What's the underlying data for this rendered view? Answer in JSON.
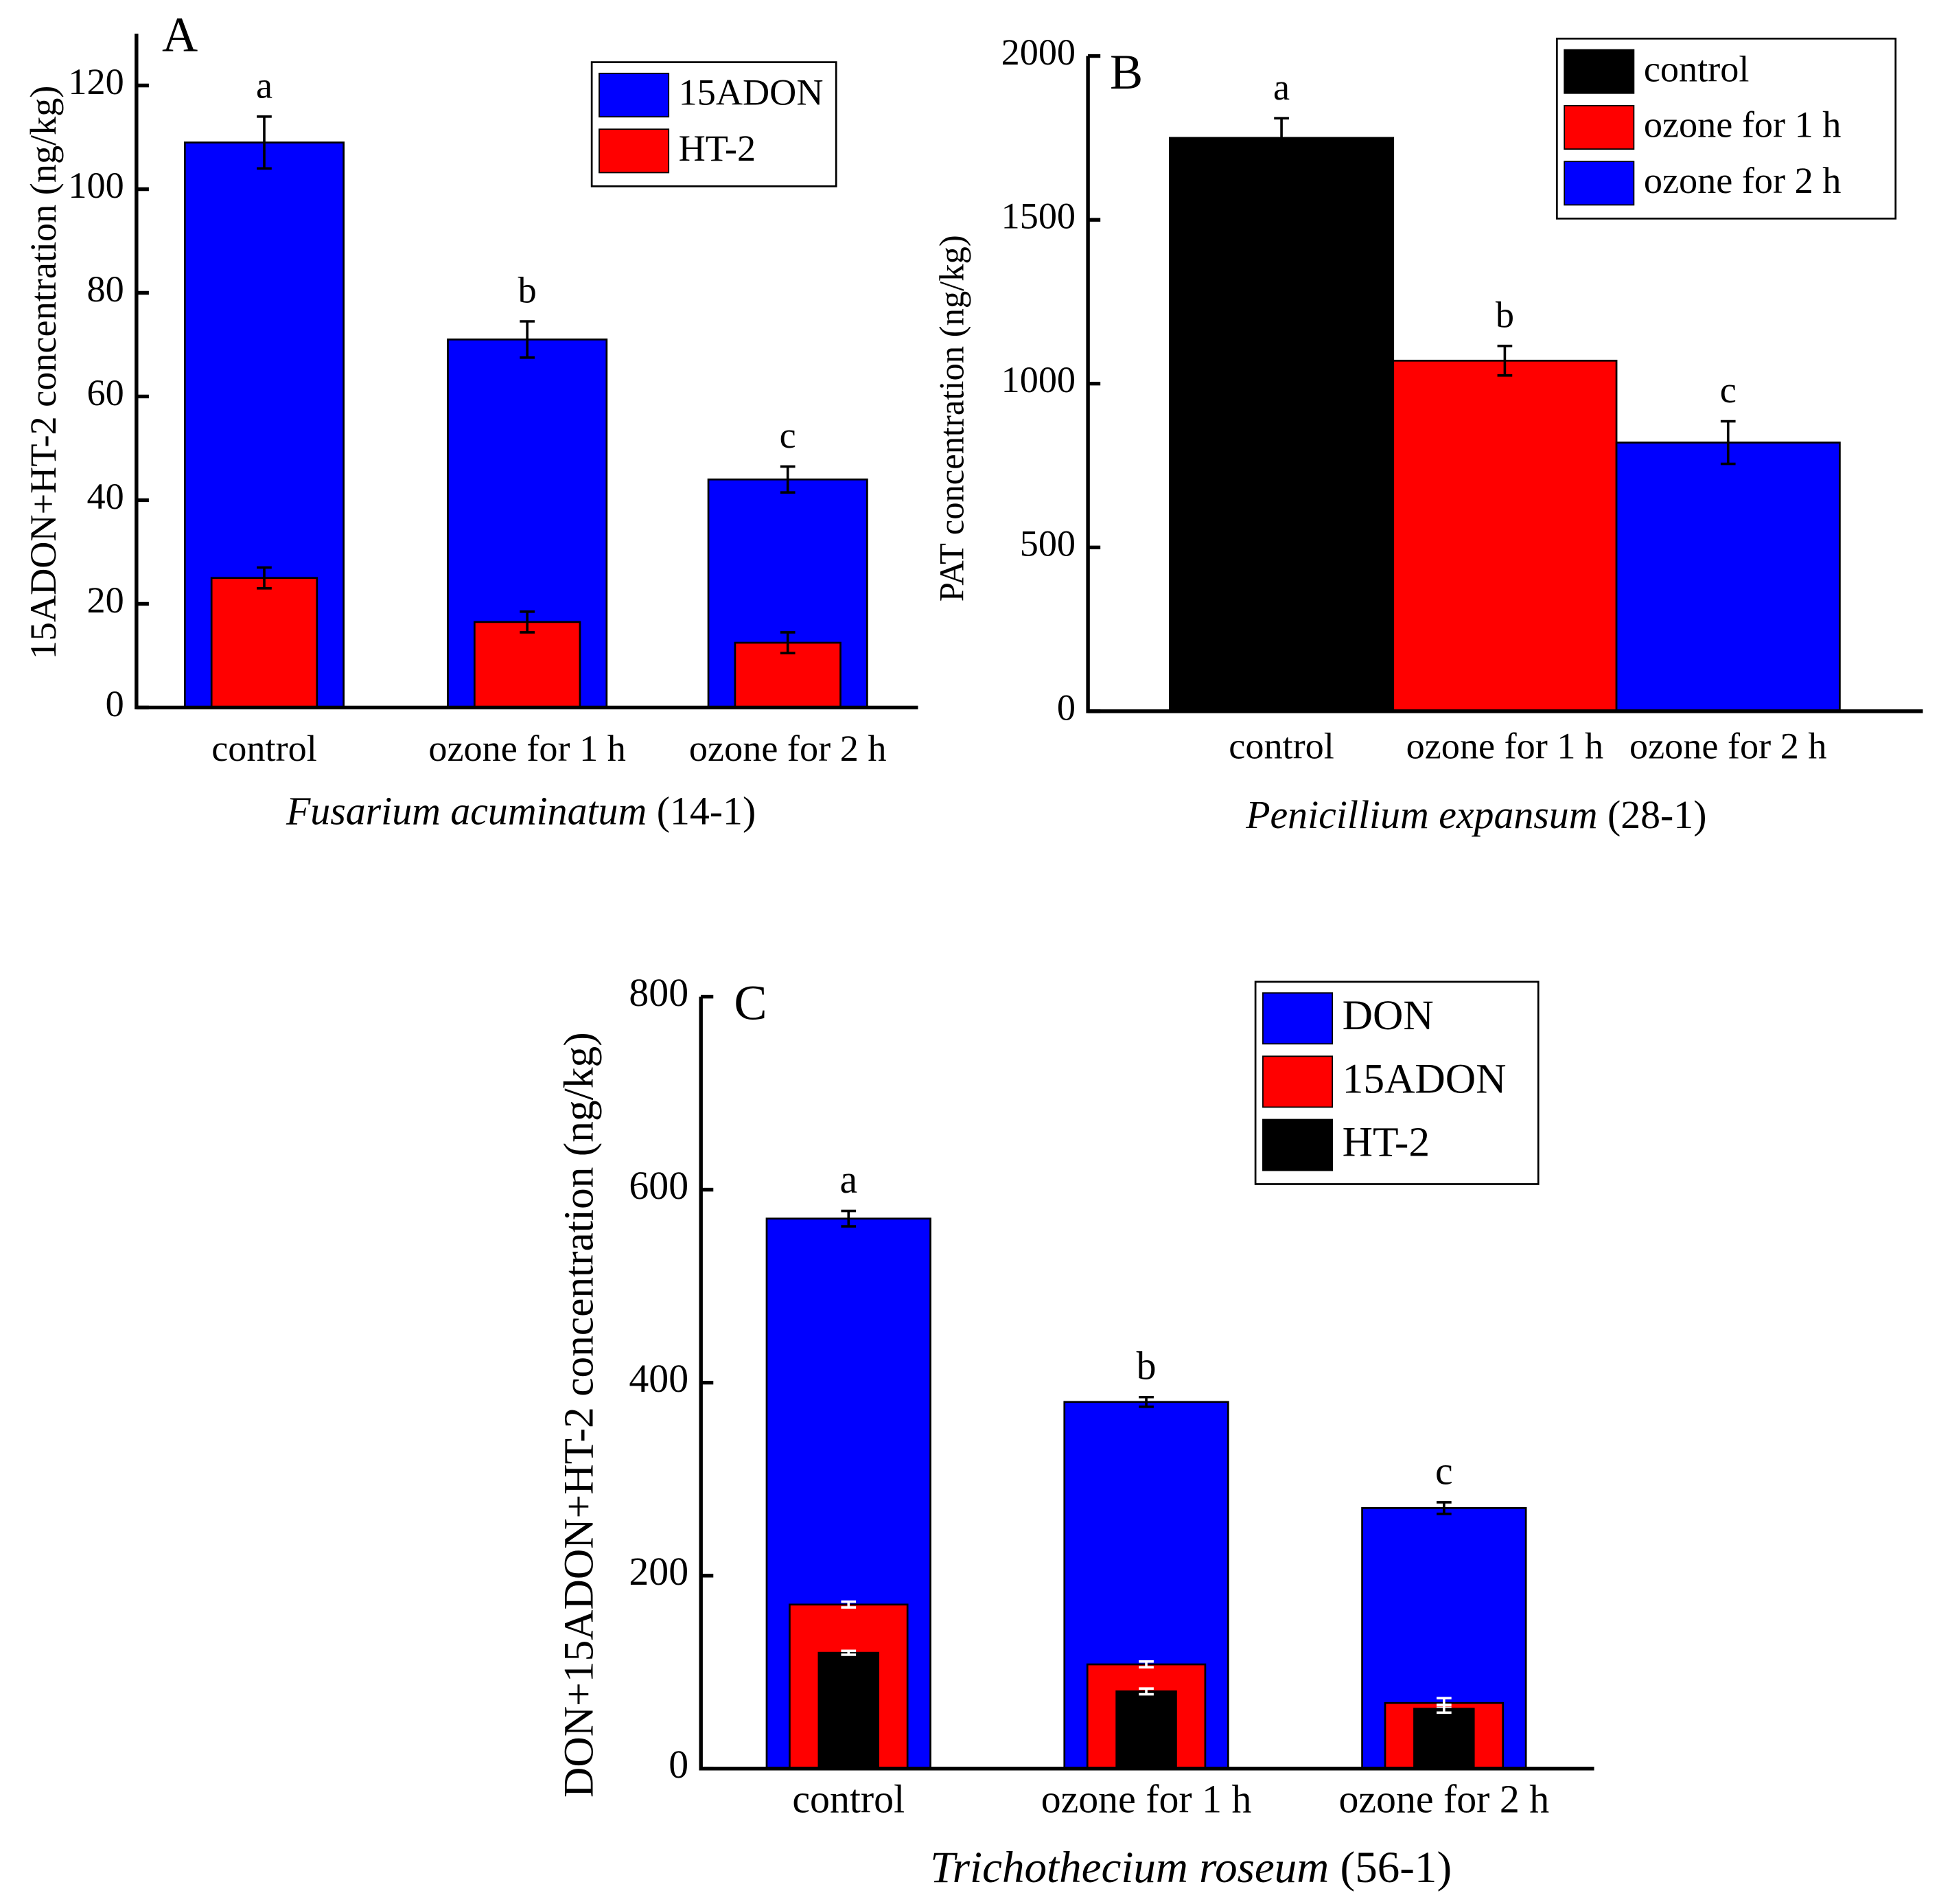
{
  "chart_data": [
    {
      "type": "bar",
      "panel": "A",
      "ylabel": "15ADON+HT-2  concentration (ng/kg)",
      "xlabel": [
        "Fusarium acuminatum",
        "(14-1)"
      ],
      "categories": [
        "control",
        "ozone for 1 h",
        "ozone for 2 h"
      ],
      "series": [
        {
          "name": "15ADON",
          "color": "#0000ff",
          "values": [
            109,
            71,
            44
          ],
          "errors": [
            5,
            3.5,
            2.5
          ],
          "error_color": "#000000"
        },
        {
          "name": "HT-2",
          "color": "#ff0000",
          "values": [
            25,
            16.5,
            12.5
          ],
          "errors": [
            2,
            2,
            2
          ],
          "error_color": "#000000"
        }
      ],
      "annotations": [
        "a",
        "b",
        "c"
      ],
      "ylim": [
        0,
        130
      ],
      "yticks": [
        0,
        20,
        40,
        60,
        80,
        100,
        120
      ],
      "legend": "upper right"
    },
    {
      "type": "bar",
      "panel": "B",
      "ylabel": "PAT concentration (ng/kg)",
      "xlabel": [
        "Penicillium expansum",
        "(28-1)"
      ],
      "categories": [
        "control",
        "ozone for 1 h",
        "ozone for 2 h"
      ],
      "series": [
        {
          "colors": [
            "#000000",
            "#ff0000",
            "#0000ff"
          ],
          "values": [
            1750,
            1070,
            820
          ],
          "errors": [
            60,
            45,
            65
          ],
          "error_color": "#000000"
        }
      ],
      "annotations": [
        "a",
        "b",
        "c"
      ],
      "ylim": [
        0,
        2000
      ],
      "yticks": [
        0,
        500,
        1000,
        1500,
        2000
      ],
      "legend": "upper right"
    },
    {
      "type": "bar",
      "panel": "C",
      "ylabel": "DON+15ADON+HT-2 concentration (ng/kg)",
      "xlabel": [
        "Trichothecium roseum",
        "(56-1)"
      ],
      "categories": [
        "control",
        "ozone for 1 h",
        "ozone for 2 h"
      ],
      "series": [
        {
          "name": "DON",
          "color": "#0000ff",
          "values": [
            570,
            380,
            270
          ],
          "errors": [
            8,
            5,
            6
          ],
          "error_color": "#000000"
        },
        {
          "name": "15ADON",
          "color": "#ff0000",
          "values": [
            170,
            108,
            68
          ],
          "errors": [
            3,
            3,
            5
          ],
          "error_color": "#ffffff"
        },
        {
          "name": "HT-2",
          "color": "#000000",
          "values": [
            120,
            80,
            62
          ],
          "errors": [
            2,
            3,
            4
          ],
          "error_color": "#ffffff"
        }
      ],
      "annotations": [
        "a",
        "b",
        "c"
      ],
      "ylim": [
        0,
        800
      ],
      "yticks": [
        0,
        200,
        400,
        600,
        800
      ],
      "legend": "upper right"
    }
  ]
}
